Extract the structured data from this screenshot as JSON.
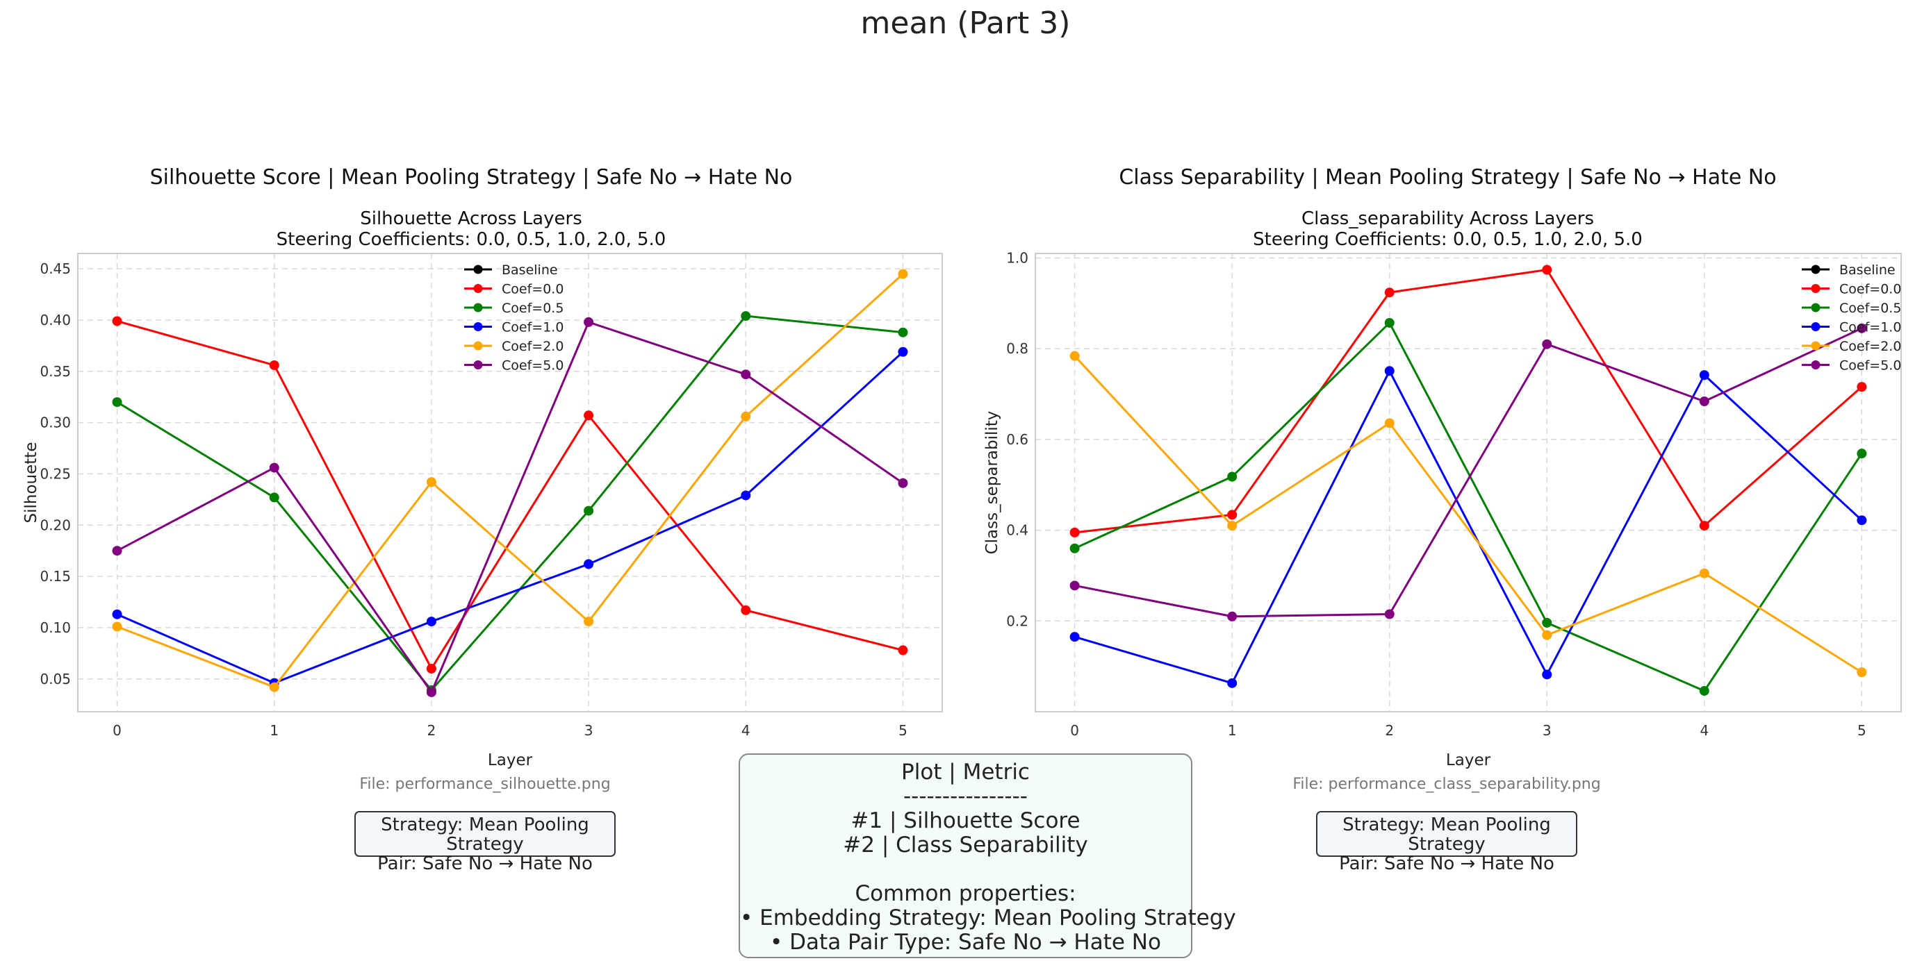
{
  "suptitle": "mean (Part 3)",
  "panels": [
    {
      "panel_title": "Silhouette Score | Mean Pooling Strategy | Safe No → Hate No",
      "sub1": "Silhouette Across Layers",
      "sub2": "Steering Coefficients: 0.0, 0.5, 1.0, 2.0, 5.0",
      "file": "File: performance_silhouette.png",
      "info1": "Strategy: Mean Pooling Strategy",
      "info2": "Pair: Safe No → Hate No"
    },
    {
      "panel_title": "Class Separability | Mean Pooling Strategy | Safe No → Hate No",
      "sub1": "Class_separability Across Layers",
      "sub2": "Steering Coefficients: 0.0, 0.5, 1.0, 2.0, 5.0",
      "file": "File: performance_class_separability.png",
      "info1": "Strategy: Mean Pooling Strategy",
      "info2": "Pair: Safe No → Hate No"
    }
  ],
  "summary": {
    "title": "Plot | Metric",
    "divider": "----------------",
    "row1": "#1 | Silhouette Score",
    "row2": "#2 | Class Separability",
    "common": "Common properties:",
    "prop1": "• Embedding Strategy: Mean Pooling Strategy",
    "prop2": "• Data Pair Type: Safe No → Hate No"
  },
  "chart_data": [
    {
      "type": "line",
      "xlabel": "Layer",
      "ylabel": "Silhouette",
      "x": [
        0,
        1,
        2,
        3,
        4,
        5
      ],
      "xlim": [
        -0.25,
        5.25
      ],
      "ylim": [
        0.018,
        0.465
      ],
      "yticks": [
        0.05,
        0.1,
        0.15,
        0.2,
        0.25,
        0.3,
        0.35,
        0.4,
        0.45
      ],
      "ytick_labels": [
        "0.05",
        "0.10",
        "0.15",
        "0.20",
        "0.25",
        "0.30",
        "0.35",
        "0.40",
        "0.45"
      ],
      "grid": true,
      "legend_position": "top-center",
      "legend": [
        "Baseline",
        "Coef=0.0",
        "Coef=0.5",
        "Coef=1.0",
        "Coef=2.0",
        "Coef=5.0"
      ],
      "legend_colors": [
        "#000000",
        "#ff0000",
        "#008000",
        "#0000ff",
        "#ffa500",
        "#800080"
      ],
      "series": [
        {
          "name": "Coef=0.0",
          "color": "#ff0000",
          "values": [
            0.399,
            0.356,
            0.06,
            0.307,
            0.117,
            0.078
          ]
        },
        {
          "name": "Coef=0.5",
          "color": "#008000",
          "values": [
            0.32,
            0.227,
            0.039,
            0.214,
            0.404,
            0.388
          ]
        },
        {
          "name": "Coef=1.0",
          "color": "#0000ff",
          "values": [
            0.113,
            0.046,
            0.106,
            0.162,
            0.229,
            0.369
          ]
        },
        {
          "name": "Coef=2.0",
          "color": "#ffa500",
          "values": [
            0.101,
            0.042,
            0.242,
            0.106,
            0.306,
            0.445
          ]
        },
        {
          "name": "Coef=5.0",
          "color": "#800080",
          "values": [
            0.175,
            0.256,
            0.037,
            0.398,
            0.347,
            0.241
          ]
        }
      ]
    },
    {
      "type": "line",
      "xlabel": "Layer",
      "ylabel": "Class_separability",
      "x": [
        0,
        1,
        2,
        3,
        4,
        5
      ],
      "xlim": [
        -0.25,
        5.25
      ],
      "ylim": [
        0.0,
        1.01
      ],
      "yticks": [
        0.2,
        0.4,
        0.6,
        0.8,
        1.0
      ],
      "ytick_labels": [
        "0.2",
        "0.4",
        "0.6",
        "0.8",
        "1.0"
      ],
      "grid": true,
      "legend_position": "top-right",
      "legend": [
        "Baseline",
        "Coef=0.0",
        "Coef=0.5",
        "Coef=1.0",
        "Coef=2.0",
        "Coef=5.0"
      ],
      "legend_colors": [
        "#000000",
        "#ff0000",
        "#008000",
        "#0000ff",
        "#ffa500",
        "#800080"
      ],
      "series": [
        {
          "name": "Coef=0.0",
          "color": "#ff0000",
          "values": [
            0.395,
            0.434,
            0.924,
            0.974,
            0.41,
            0.716
          ]
        },
        {
          "name": "Coef=0.5",
          "color": "#008000",
          "values": [
            0.36,
            0.518,
            0.857,
            0.196,
            0.046,
            0.569
          ]
        },
        {
          "name": "Coef=1.0",
          "color": "#0000ff",
          "values": [
            0.165,
            0.063,
            0.751,
            0.082,
            0.742,
            0.422
          ]
        },
        {
          "name": "Coef=2.0",
          "color": "#ffa500",
          "values": [
            0.784,
            0.41,
            0.636,
            0.169,
            0.305,
            0.087
          ]
        },
        {
          "name": "Coef=5.0",
          "color": "#800080",
          "values": [
            0.278,
            0.21,
            0.215,
            0.81,
            0.684,
            0.845
          ]
        }
      ]
    }
  ]
}
